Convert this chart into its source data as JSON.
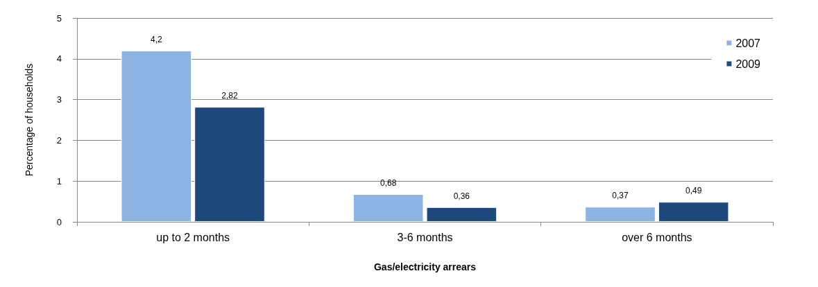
{
  "chart_data": {
    "type": "bar",
    "categories": [
      "up to 2 months",
      "3-6 months",
      "over 6 months"
    ],
    "series": [
      {
        "name": "2007",
        "color": "#8db3e2",
        "values": [
          4.2,
          0.68,
          0.37
        ],
        "value_labels": [
          "4,2",
          "0,68",
          "0,37"
        ]
      },
      {
        "name": "2009",
        "color": "#1f497d",
        "values": [
          2.82,
          0.36,
          0.49
        ],
        "value_labels": [
          "2,82",
          "0,36",
          "0,49"
        ]
      }
    ],
    "xlabel": "Gas/electricity arrears",
    "ylabel": "Percentage of households",
    "ylim": [
      0,
      5
    ],
    "yticks": [
      0,
      1,
      2,
      3,
      4,
      5
    ],
    "grid": "y",
    "legend": "top right"
  }
}
